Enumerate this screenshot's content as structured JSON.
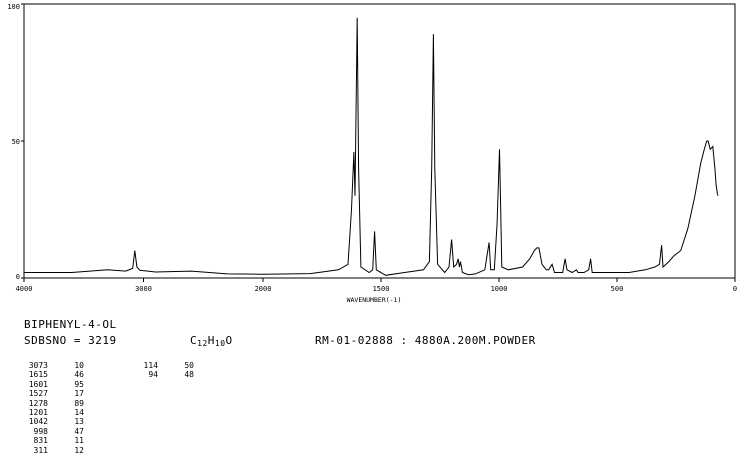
{
  "compound": {
    "name": "BIPHENYL-4-OL",
    "sdbs_no": "SDBSNO = 3219",
    "formula": {
      "c": "C",
      "c_n": "12",
      "h": "H",
      "h_n": "10",
      "o": "O"
    },
    "sample_info": "RM-01-02888 : 4880A.200M.POWDER"
  },
  "peaks_main": [
    {
      "wavenumber": "3073",
      "intensity": "10"
    },
    {
      "wavenumber": "1615",
      "intensity": "46"
    },
    {
      "wavenumber": "1601",
      "intensity": "95"
    },
    {
      "wavenumber": "1527",
      "intensity": "17"
    },
    {
      "wavenumber": "1278",
      "intensity": "89"
    },
    {
      "wavenumber": "1201",
      "intensity": "14"
    },
    {
      "wavenumber": "1042",
      "intensity": "13"
    },
    {
      "wavenumber": "998",
      "intensity": "47"
    },
    {
      "wavenumber": "831",
      "intensity": "11"
    },
    {
      "wavenumber": "311",
      "intensity": "12"
    }
  ],
  "peaks_extra": [
    {
      "wavenumber": "114",
      "intensity": "50"
    },
    {
      "wavenumber": "94",
      "intensity": "48"
    }
  ],
  "chart_data": {
    "type": "line",
    "xlabel": "WAVENUMBER(-1)",
    "xlim": [
      4000,
      0
    ],
    "ylim": [
      0,
      100
    ],
    "x_ticks": [
      "4000",
      "3000",
      "2000",
      "1500",
      "1000",
      "500",
      "0"
    ],
    "x_tick_values": [
      4000,
      3000,
      2000,
      1500,
      1000,
      500,
      0
    ],
    "y_ticks": [
      "0",
      "50",
      "100"
    ],
    "y_tick_values": [
      0,
      50,
      100
    ],
    "grid": false,
    "series": [
      {
        "values": [
          [
            4000,
            2
          ],
          [
            3600,
            2
          ],
          [
            3300,
            3
          ],
          [
            3150,
            2.5
          ],
          [
            3090,
            3.5
          ],
          [
            3073,
            10
          ],
          [
            3055,
            4
          ],
          [
            3030,
            2.8
          ],
          [
            2900,
            2.2
          ],
          [
            2600,
            2.5
          ],
          [
            2300,
            1.5
          ],
          [
            2000,
            1.4
          ],
          [
            1800,
            1.6
          ],
          [
            1680,
            3
          ],
          [
            1640,
            5
          ],
          [
            1625,
            25
          ],
          [
            1615,
            46
          ],
          [
            1610,
            30
          ],
          [
            1601,
            95
          ],
          [
            1595,
            40
          ],
          [
            1585,
            4
          ],
          [
            1550,
            2
          ],
          [
            1535,
            3
          ],
          [
            1527,
            17
          ],
          [
            1520,
            3
          ],
          [
            1480,
            1
          ],
          [
            1400,
            2
          ],
          [
            1320,
            3
          ],
          [
            1295,
            6
          ],
          [
            1285,
            40
          ],
          [
            1278,
            89
          ],
          [
            1272,
            40
          ],
          [
            1260,
            5
          ],
          [
            1230,
            2
          ],
          [
            1212,
            4
          ],
          [
            1201,
            14
          ],
          [
            1192,
            4
          ],
          [
            1180,
            5
          ],
          [
            1173,
            7
          ],
          [
            1168,
            4
          ],
          [
            1163,
            6
          ],
          [
            1155,
            2
          ],
          [
            1130,
            1.2
          ],
          [
            1100,
            1.5
          ],
          [
            1060,
            3
          ],
          [
            1042,
            13
          ],
          [
            1035,
            3
          ],
          [
            1020,
            3
          ],
          [
            1008,
            20
          ],
          [
            998,
            47
          ],
          [
            993,
            25
          ],
          [
            988,
            4
          ],
          [
            960,
            3
          ],
          [
            900,
            4
          ],
          [
            870,
            7
          ],
          [
            850,
            10
          ],
          [
            840,
            11
          ],
          [
            831,
            11
          ],
          [
            818,
            5
          ],
          [
            800,
            3
          ],
          [
            790,
            3
          ],
          [
            775,
            5
          ],
          [
            765,
            2
          ],
          [
            730,
            2
          ],
          [
            720,
            7
          ],
          [
            712,
            3
          ],
          [
            690,
            2
          ],
          [
            672,
            3
          ],
          [
            665,
            2
          ],
          [
            640,
            2
          ],
          [
            620,
            3
          ],
          [
            612,
            7
          ],
          [
            605,
            2
          ],
          [
            560,
            2
          ],
          [
            530,
            2
          ],
          [
            450,
            2
          ],
          [
            380,
            3
          ],
          [
            340,
            4
          ],
          [
            320,
            5
          ],
          [
            311,
            12
          ],
          [
            305,
            4
          ],
          [
            280,
            6
          ],
          [
            260,
            8
          ],
          [
            230,
            10
          ],
          [
            200,
            18
          ],
          [
            170,
            30
          ],
          [
            145,
            42
          ],
          [
            130,
            47
          ],
          [
            120,
            50
          ],
          [
            114,
            50
          ],
          [
            105,
            47
          ],
          [
            94,
            48
          ],
          [
            85,
            40
          ],
          [
            80,
            34
          ],
          [
            75,
            31
          ],
          [
            72,
            30
          ]
        ]
      }
    ]
  }
}
